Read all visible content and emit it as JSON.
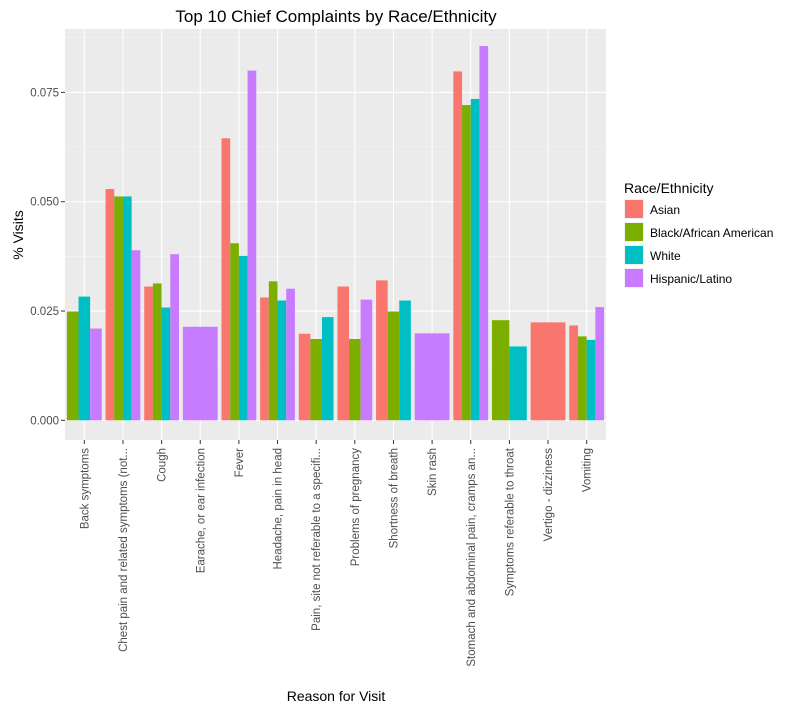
{
  "chart_data": {
    "type": "bar",
    "title": "Top 10 Chief Complaints by Race/Ethnicity",
    "xlabel": "Reason for Visit",
    "ylabel": "% Visits",
    "ylim": [
      -0.0045,
      0.0895
    ],
    "yticks": [
      0.0,
      0.025,
      0.05,
      0.075
    ],
    "ytick_labels": [
      "0.000",
      "0.025",
      "0.050",
      "0.075"
    ],
    "grid": true,
    "legend_position": "right",
    "legend_title": "Race/Ethnicity",
    "categories": [
      "Back symptoms",
      "Chest pain and related symptoms (not...",
      "Cough",
      "Earache, or ear infection",
      "Fever",
      "Headache, pain in head",
      "Pain, site not referable to a specifi...",
      "Problems of pregnancy",
      "Shortness of breath",
      "Skin rash",
      "Stomach and abdominal pain, cramps an...",
      "Symptoms referable to throat",
      "Vertigo - dizziness",
      "Vomiting"
    ],
    "series": [
      {
        "name": "Asian",
        "color": "#F8766D",
        "values": [
          null,
          0.0529,
          0.0306,
          null,
          0.0645,
          0.0281,
          0.0198,
          0.0306,
          0.032,
          null,
          0.0798,
          null,
          0.0224,
          0.0217
        ]
      },
      {
        "name": "Black/African American",
        "color": "#7CAE00",
        "values": [
          0.0249,
          0.0512,
          0.0313,
          null,
          0.0405,
          0.0318,
          0.0186,
          0.0186,
          0.0249,
          null,
          0.0721,
          0.0229,
          null,
          0.0192
        ]
      },
      {
        "name": "White",
        "color": "#00BFC4",
        "values": [
          0.0283,
          0.0512,
          0.0258,
          null,
          0.0376,
          0.0274,
          0.0236,
          null,
          0.0274,
          null,
          0.0735,
          0.0169,
          null,
          0.0184
        ]
      },
      {
        "name": "Hispanic/Latino",
        "color": "#C77CFF",
        "values": [
          0.021,
          0.0389,
          0.038,
          0.0214,
          0.08,
          0.0301,
          null,
          0.0276,
          null,
          0.0199,
          0.0856,
          null,
          null,
          0.0259
        ]
      }
    ]
  }
}
